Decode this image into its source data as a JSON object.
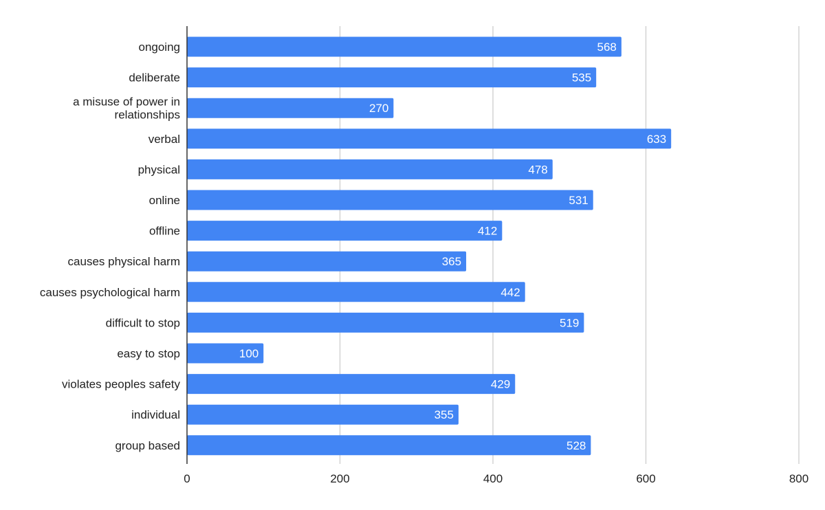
{
  "colors": {
    "bar": "#4285f4",
    "grid": "#cccccc",
    "value_label": "#ffffff"
  },
  "chart_data": {
    "type": "bar",
    "orientation": "horizontal",
    "categories": [
      "ongoing",
      "deliberate",
      "a misuse of power in relationships",
      "verbal",
      "physical",
      "online",
      "offline",
      "causes physical harm",
      "causes psychological harm",
      "difficult to stop",
      "easy to stop",
      "violates peoples safety",
      "individual",
      "group based"
    ],
    "values": [
      568,
      535,
      270,
      633,
      478,
      531,
      412,
      365,
      442,
      519,
      100,
      429,
      355,
      528
    ],
    "xlim": [
      0,
      800
    ],
    "xticks": [
      0,
      200,
      400,
      600,
      800
    ],
    "xtick_labels": [
      "0",
      "200",
      "400",
      "600",
      "800"
    ],
    "grid": true,
    "data_labels": true,
    "title": "",
    "xlabel": "",
    "ylabel": ""
  }
}
